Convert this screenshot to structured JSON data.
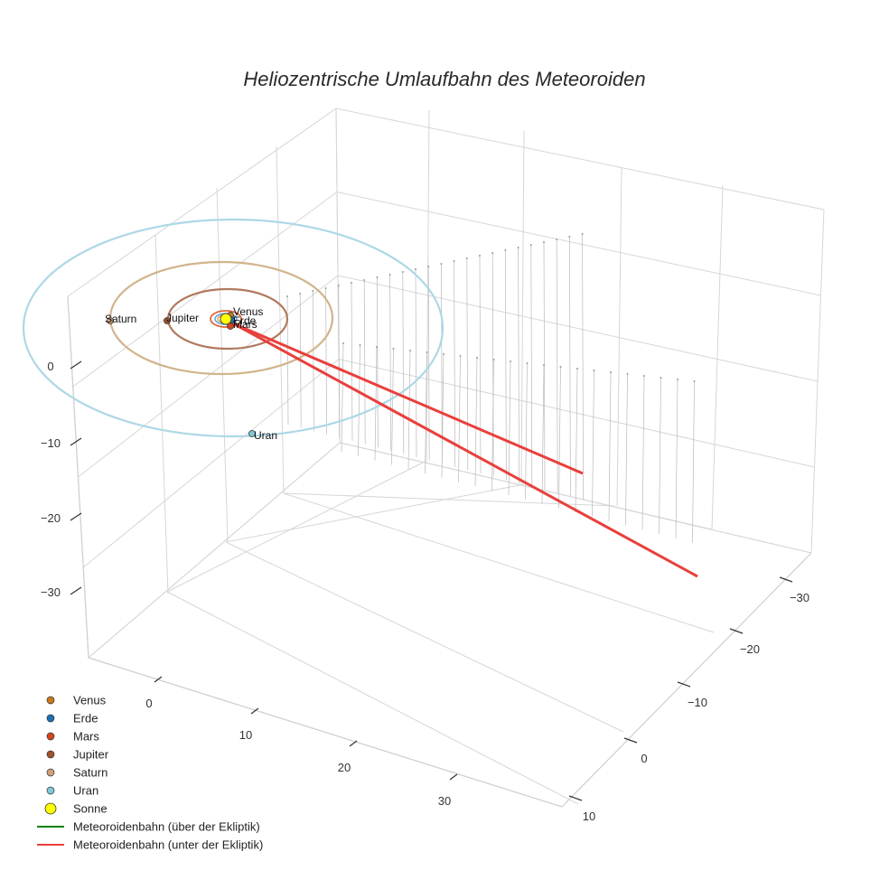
{
  "chart_data": {
    "type": "scatter3d",
    "title": "Heliozentrische Umlaufbahn des Meteoroiden",
    "axes": {
      "z_ticks": [
        "0",
        "−10",
        "−20",
        "−30"
      ],
      "x_ticks": [
        "0",
        "10",
        "20",
        "30"
      ],
      "y_ticks": [
        "−30",
        "−20",
        "−10",
        "0",
        "10"
      ]
    },
    "planets": [
      {
        "name": "Venus",
        "label": "Venus",
        "color": "#c8781e"
      },
      {
        "name": "Erde",
        "label": "Erde",
        "color": "#1f6fb4"
      },
      {
        "name": "Mars",
        "label": "Mars",
        "color": "#d2461e"
      },
      {
        "name": "Jupiter",
        "label": "Jupiter",
        "color": "#a0522d"
      },
      {
        "name": "Saturn",
        "label": "Saturn",
        "color": "#d2a07a"
      },
      {
        "name": "Uran",
        "label": "Uran",
        "color": "#7ec8dc"
      }
    ],
    "orbit_colors": {
      "venus": "#e0a060",
      "erde": "#6aa6d6",
      "mars": "#d9663c",
      "jupiter": "#b07a5e",
      "saturn": "#d2b48c",
      "uran": "#add8e6"
    },
    "sun": {
      "name": "Sonne",
      "color": "#ffff00"
    },
    "meteoroid": {
      "above_name": "Meteoroidenbahn (über der Ekliptik)",
      "above_color": "#008000",
      "below_name": "Meteoroidenbahn (unter der Ekliptik)",
      "below_color": "#e8403c"
    },
    "legend": [
      {
        "label": "Venus",
        "kind": "marker",
        "color": "#c8781e"
      },
      {
        "label": "Erde",
        "kind": "marker",
        "color": "#1f6fb4"
      },
      {
        "label": "Mars",
        "kind": "marker",
        "color": "#d2461e"
      },
      {
        "label": "Jupiter",
        "kind": "marker",
        "color": "#a0522d"
      },
      {
        "label": "Saturn",
        "kind": "marker",
        "color": "#d2a07a"
      },
      {
        "label": "Uran",
        "kind": "marker",
        "color": "#7ec8dc"
      },
      {
        "label": "Sonne",
        "kind": "sun",
        "color": "#ffff00"
      },
      {
        "label": "Meteoroidenbahn (über der Ekliptik)",
        "kind": "line",
        "color": "#008000"
      },
      {
        "label": "Meteoroidenbahn (unter der Ekliptik)",
        "kind": "line",
        "color": "#e8403c"
      }
    ]
  }
}
